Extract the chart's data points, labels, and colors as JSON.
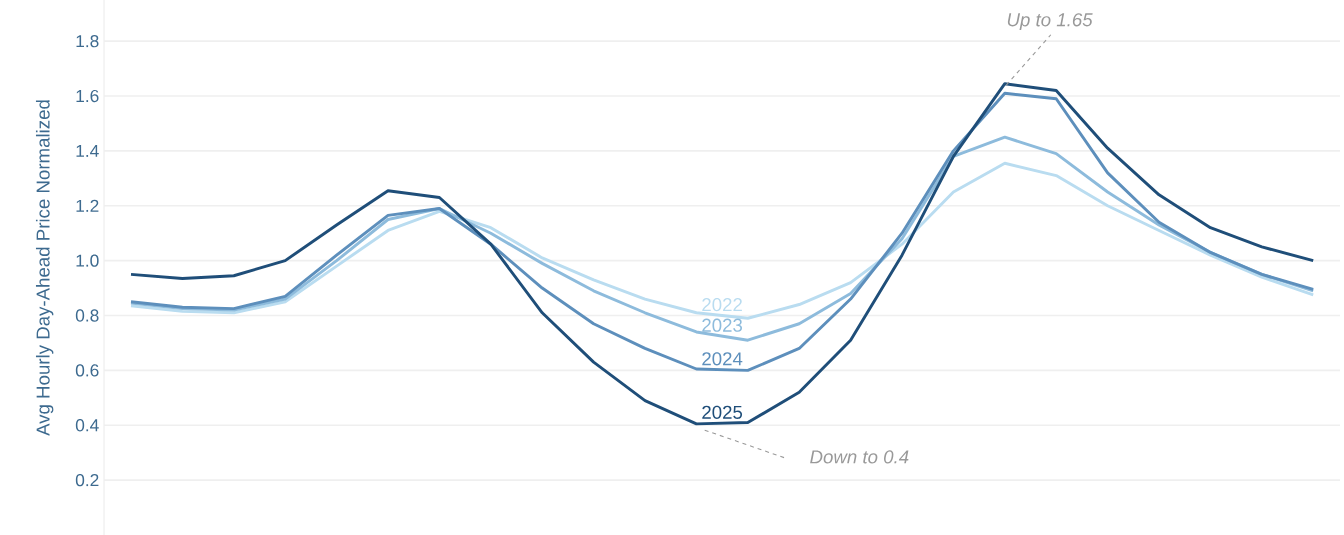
{
  "chart_data": {
    "type": "line",
    "ylabel": "Avg Hourly Day-Ahead Price Normalized",
    "categories": [
      null,
      null,
      null,
      null,
      null,
      null,
      null,
      null,
      null,
      null,
      null,
      null,
      null,
      null,
      null,
      null,
      null,
      null,
      null,
      null,
      null,
      null,
      null,
      null
    ],
    "series": [
      {
        "name": "2022",
        "color": "#b9dcf0",
        "values": [
          0.835,
          0.815,
          0.81,
          0.85,
          0.98,
          1.11,
          1.18,
          1.12,
          1.01,
          0.93,
          0.86,
          0.81,
          0.79,
          0.84,
          0.92,
          1.06,
          1.25,
          1.355,
          1.31,
          1.2,
          1.11,
          1.02,
          0.94,
          0.875
        ]
      },
      {
        "name": "2023",
        "color": "#8dbbdc",
        "values": [
          0.845,
          0.825,
          0.82,
          0.86,
          1.0,
          1.15,
          1.19,
          1.1,
          0.99,
          0.89,
          0.81,
          0.74,
          0.71,
          0.77,
          0.88,
          1.08,
          1.38,
          1.45,
          1.39,
          1.25,
          1.13,
          1.03,
          0.95,
          0.89
        ]
      },
      {
        "name": "2024",
        "color": "#5d8fbc",
        "values": [
          0.85,
          0.83,
          0.825,
          0.87,
          1.02,
          1.165,
          1.19,
          1.06,
          0.9,
          0.77,
          0.68,
          0.605,
          0.6,
          0.68,
          0.86,
          1.1,
          1.4,
          1.61,
          1.59,
          1.32,
          1.14,
          1.03,
          0.95,
          0.895
        ]
      },
      {
        "name": "2025",
        "color": "#1f4e79",
        "values": [
          0.95,
          0.935,
          0.945,
          1.0,
          1.13,
          1.255,
          1.23,
          1.06,
          0.81,
          0.63,
          0.49,
          0.405,
          0.41,
          0.52,
          0.71,
          1.02,
          1.38,
          1.645,
          1.62,
          1.41,
          1.24,
          1.12,
          1.05,
          1.0
        ]
      }
    ],
    "ylim": [
      0,
      1.95
    ],
    "yticks": [
      0.2,
      0.4,
      0.6,
      0.8,
      {
        "value": 1.0,
        "label": "1.0"
      },
      1.2,
      1.4,
      1.6,
      1.8
    ],
    "annotations": [
      "Up to 1.65",
      "Down to 0.4"
    ],
    "grid": "y",
    "legend": false,
    "marker": "none",
    "line_style": "solid"
  }
}
